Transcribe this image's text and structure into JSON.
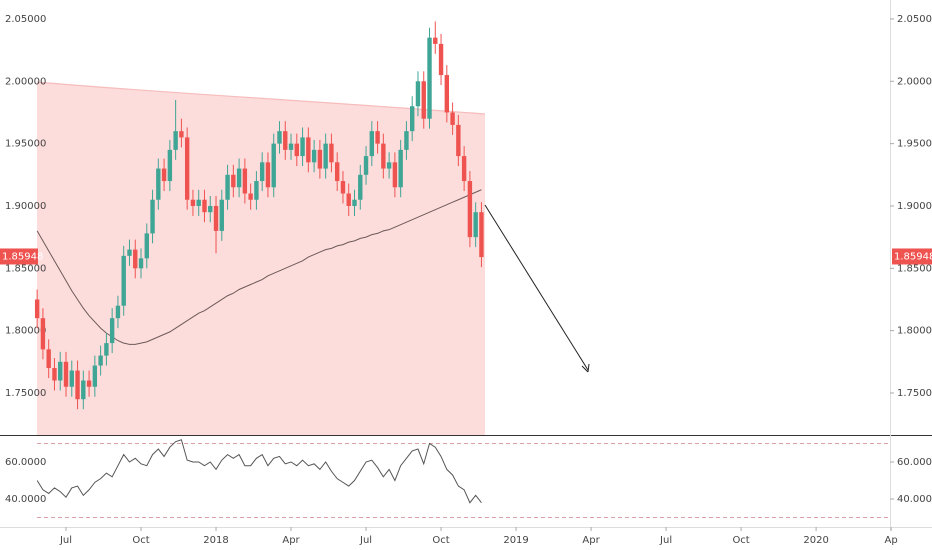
{
  "chart_data": [
    {
      "type": "candlestick",
      "open": [
        1.825,
        1.81,
        1.785,
        1.77,
        1.76,
        1.775,
        1.755,
        1.768,
        1.745,
        1.76,
        1.755,
        1.772,
        1.78,
        1.79,
        1.81,
        1.82,
        1.86,
        1.865,
        1.85,
        1.858,
        1.878,
        1.905,
        1.93,
        1.92,
        1.945,
        1.96,
        1.955,
        1.905,
        1.9,
        1.905,
        1.895,
        1.9,
        1.88,
        1.905,
        1.925,
        1.915,
        1.93,
        1.91,
        1.905,
        1.92,
        1.935,
        1.915,
        1.95,
        1.96,
        1.945,
        1.95,
        1.94,
        1.955,
        1.935,
        1.945,
        1.93,
        1.95,
        1.935,
        1.92,
        1.91,
        1.9,
        1.905,
        1.925,
        1.94,
        1.96,
        1.95,
        1.93,
        1.935,
        1.915,
        1.945,
        1.96,
        1.98,
        2.0,
        1.97,
        2.035,
        2.03,
        2.005,
        1.975,
        1.965,
        1.94,
        1.92,
        1.875,
        1.895
      ],
      "high": [
        1.833,
        1.818,
        1.793,
        1.778,
        1.783,
        1.783,
        1.776,
        1.776,
        1.768,
        1.768,
        1.78,
        1.788,
        1.798,
        1.818,
        1.828,
        1.868,
        1.873,
        1.873,
        1.866,
        1.886,
        1.913,
        1.938,
        1.938,
        1.953,
        1.985,
        1.97,
        1.963,
        1.913,
        1.913,
        1.913,
        1.908,
        1.908,
        1.913,
        1.933,
        1.933,
        1.938,
        1.938,
        1.918,
        1.928,
        1.943,
        1.943,
        1.958,
        1.968,
        1.968,
        1.958,
        1.958,
        1.963,
        1.963,
        1.953,
        1.953,
        1.958,
        1.958,
        1.943,
        1.928,
        1.918,
        1.913,
        1.933,
        1.948,
        1.968,
        1.968,
        1.958,
        1.943,
        1.943,
        1.953,
        1.968,
        1.988,
        2.008,
        2.008,
        2.043,
        2.048,
        2.038,
        2.013,
        1.983,
        1.973,
        1.948,
        1.928,
        1.903,
        1.903
      ],
      "low": [
        1.802,
        1.777,
        1.762,
        1.752,
        1.752,
        1.747,
        1.747,
        1.737,
        1.737,
        1.747,
        1.747,
        1.764,
        1.772,
        1.782,
        1.802,
        1.812,
        1.852,
        1.842,
        1.842,
        1.85,
        1.87,
        1.897,
        1.912,
        1.912,
        1.937,
        1.947,
        1.897,
        1.892,
        1.892,
        1.887,
        1.887,
        1.862,
        1.872,
        1.897,
        1.907,
        1.907,
        1.902,
        1.897,
        1.897,
        1.912,
        1.907,
        1.907,
        1.942,
        1.937,
        1.937,
        1.932,
        1.932,
        1.927,
        1.927,
        1.922,
        1.922,
        1.927,
        1.912,
        1.902,
        1.892,
        1.892,
        1.897,
        1.917,
        1.932,
        1.942,
        1.922,
        1.922,
        1.907,
        1.907,
        1.937,
        1.952,
        1.972,
        1.962,
        1.962,
        2.022,
        1.997,
        1.967,
        1.957,
        1.932,
        1.912,
        1.867,
        1.867,
        1.851
      ],
      "close": [
        1.81,
        1.785,
        1.77,
        1.76,
        1.775,
        1.755,
        1.768,
        1.745,
        1.76,
        1.755,
        1.772,
        1.78,
        1.79,
        1.81,
        1.82,
        1.86,
        1.865,
        1.85,
        1.858,
        1.878,
        1.905,
        1.93,
        1.92,
        1.945,
        1.96,
        1.955,
        1.905,
        1.9,
        1.905,
        1.895,
        1.9,
        1.88,
        1.905,
        1.925,
        1.915,
        1.93,
        1.91,
        1.905,
        1.92,
        1.935,
        1.915,
        1.95,
        1.96,
        1.945,
        1.95,
        1.94,
        1.955,
        1.935,
        1.945,
        1.93,
        1.95,
        1.935,
        1.92,
        1.91,
        1.9,
        1.905,
        1.925,
        1.94,
        1.96,
        1.95,
        1.93,
        1.935,
        1.915,
        1.945,
        1.96,
        1.98,
        2.0,
        1.97,
        2.035,
        2.03,
        2.005,
        1.975,
        1.965,
        1.94,
        1.92,
        1.875,
        1.895,
        1.859
      ],
      "ma_values": [
        1.88,
        1.872,
        1.864,
        1.856,
        1.848,
        1.84,
        1.832,
        1.825,
        1.818,
        1.812,
        1.807,
        1.802,
        1.798,
        1.795,
        1.792,
        1.79,
        1.789,
        1.789,
        1.79,
        1.791,
        1.793,
        1.795,
        1.797,
        1.799,
        1.802,
        1.805,
        1.808,
        1.811,
        1.814,
        1.816,
        1.819,
        1.822,
        1.825,
        1.828,
        1.83,
        1.833,
        1.835,
        1.837,
        1.839,
        1.841,
        1.844,
        1.846,
        1.848,
        1.85,
        1.852,
        1.854,
        1.856,
        1.859,
        1.861,
        1.863,
        1.865,
        1.866,
        1.868,
        1.869,
        1.871,
        1.872,
        1.874,
        1.875,
        1.877,
        1.878,
        1.88,
        1.881,
        1.883,
        1.885,
        1.887,
        1.889,
        1.891,
        1.893,
        1.895,
        1.897,
        1.899,
        1.901,
        1.903,
        1.905,
        1.907,
        1.909,
        1.911,
        1.913
      ],
      "up_color": "#3fa595",
      "down_color": "#ef5350",
      "ma_color": "#6d5a5a",
      "last_price": 1.85948,
      "xlim": [
        -5,
        152
      ],
      "xticks": [
        {
          "value": 5,
          "label": "Jul"
        },
        {
          "value": 18,
          "label": "Oct"
        },
        {
          "value": 31,
          "label": "2018"
        },
        {
          "value": 44,
          "label": "Apr"
        },
        {
          "value": 57,
          "label": "Jul"
        },
        {
          "value": 70,
          "label": "Oct"
        },
        {
          "value": 83,
          "label": "2019"
        },
        {
          "value": 96,
          "label": "Apr"
        },
        {
          "value": 109,
          "label": "Jul"
        },
        {
          "value": 122,
          "label": "Oct"
        },
        {
          "value": 135,
          "label": "2020"
        },
        {
          "value": 148,
          "label": "Ap"
        }
      ],
      "ylim": [
        1.7163,
        2.0652
      ],
      "yticks": [
        {
          "value": 2.05,
          "label": "2.05000"
        },
        {
          "value": 2.0,
          "label": "2.00000"
        },
        {
          "value": 1.95,
          "label": "1.95000"
        },
        {
          "value": 1.9,
          "label": "1.90000"
        },
        {
          "value": 1.85,
          "label": "1.85000"
        },
        {
          "value": 1.8,
          "label": "1.80000"
        },
        {
          "value": 1.75,
          "label": "1.75000"
        }
      ]
    },
    {
      "type": "line",
      "values": [
        50,
        45,
        43,
        46,
        44,
        41,
        46,
        47,
        42,
        45,
        49,
        51,
        54,
        52,
        58,
        64,
        60,
        62,
        59,
        58,
        64,
        67,
        63,
        68,
        71,
        72,
        61,
        60,
        60,
        58,
        60,
        56,
        61,
        64,
        62,
        64,
        58,
        58,
        62,
        64,
        58,
        62,
        63,
        59,
        60,
        58,
        61,
        58,
        59,
        56,
        60,
        55,
        51,
        49,
        47,
        50,
        55,
        60,
        61,
        57,
        52,
        56,
        50,
        58,
        62,
        66,
        67,
        59,
        70,
        68,
        63,
        56,
        53,
        47,
        45,
        38,
        42,
        38
      ],
      "color": "#555555",
      "levels": [
        70,
        30
      ],
      "ylim": [
        24.9,
        73.5
      ],
      "yticks": [
        {
          "value": 60,
          "label": "60.0000"
        },
        {
          "value": 40,
          "label": "40.0000"
        }
      ]
    }
  ]
}
